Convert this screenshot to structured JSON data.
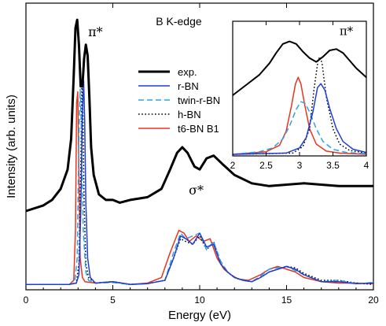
{
  "chart_data": [
    {
      "type": "line",
      "panel": "main",
      "xlabel": "Energy (eV)",
      "ylabel": "Intensity (arb. units)",
      "xlim": [
        0,
        20
      ],
      "xticks": [
        0,
        5,
        10,
        15,
        20
      ],
      "ylim": [
        0,
        1
      ],
      "y_tick_labels": false,
      "grid": false,
      "legend_position": "center",
      "annotations": [
        {
          "text": "B K-edge",
          "x": 8.8,
          "y": 0.94
        },
        {
          "text": "π*",
          "x": 4.0,
          "y": 0.9
        },
        {
          "text": "σ*",
          "x": 9.8,
          "y": 0.33
        }
      ],
      "series": [
        {
          "name": "exp.",
          "color": "#000000",
          "dash": "solid",
          "width": 3,
          "x": [
            0,
            1,
            1.5,
            2,
            2.4,
            2.6,
            2.75,
            2.85,
            2.95,
            3.05,
            3.15,
            3.25,
            3.35,
            3.45,
            3.55,
            3.65,
            3.75,
            3.9,
            4.2,
            4.6,
            5.0,
            5.4,
            6,
            7,
            7.8,
            8.3,
            8.7,
            9.0,
            9.3,
            9.7,
            10.0,
            10.4,
            10.8,
            11.3,
            12,
            13,
            14,
            15,
            16,
            17,
            18,
            19,
            20
          ],
          "y": [
            0.27,
            0.29,
            0.31,
            0.35,
            0.42,
            0.53,
            0.76,
            0.93,
            0.96,
            0.87,
            0.72,
            0.72,
            0.82,
            0.87,
            0.83,
            0.68,
            0.5,
            0.4,
            0.33,
            0.31,
            0.31,
            0.3,
            0.31,
            0.32,
            0.35,
            0.42,
            0.48,
            0.5,
            0.48,
            0.43,
            0.42,
            0.46,
            0.47,
            0.44,
            0.4,
            0.37,
            0.36,
            0.365,
            0.37,
            0.365,
            0.36,
            0.36,
            0.36
          ]
        },
        {
          "name": "r-BN",
          "color": "#1f3fd0",
          "dash": "solid",
          "width": 1.5,
          "x": [
            0,
            2.5,
            2.9,
            3.05,
            3.15,
            3.25,
            3.32,
            3.38,
            3.45,
            3.55,
            3.7,
            4,
            5,
            6,
            7,
            8,
            8.5,
            8.9,
            9.2,
            9.6,
            10.0,
            10.4,
            10.8,
            11.2,
            11.6,
            12,
            12.5,
            13,
            13.5,
            14,
            14.5,
            15,
            15.5,
            16,
            17,
            18,
            19,
            20
          ],
          "y": [
            0.005,
            0.005,
            0.01,
            0.04,
            0.25,
            0.62,
            0.74,
            0.6,
            0.3,
            0.1,
            0.03,
            0.01,
            0.015,
            0.005,
            0.008,
            0.02,
            0.1,
            0.18,
            0.17,
            0.15,
            0.19,
            0.14,
            0.15,
            0.08,
            0.05,
            0.03,
            0.02,
            0.015,
            0.03,
            0.05,
            0.06,
            0.07,
            0.06,
            0.04,
            0.015,
            0.015,
            0.008,
            0.01
          ]
        },
        {
          "name": "twin-r-BN",
          "color": "#2aa3e8",
          "dash": "dash",
          "width": 1.5,
          "x": [
            0,
            2.5,
            2.8,
            2.95,
            3.05,
            3.12,
            3.2,
            3.3,
            3.45,
            3.6,
            4,
            5,
            6,
            7,
            8,
            8.5,
            8.9,
            9.2,
            9.6,
            10.0,
            10.4,
            10.8,
            11.2,
            11.6,
            12,
            12.5,
            13,
            13.5,
            14,
            14.5,
            15,
            15.5,
            16,
            17,
            18,
            19,
            20
          ],
          "y": [
            0.005,
            0.005,
            0.01,
            0.1,
            0.55,
            0.71,
            0.55,
            0.2,
            0.05,
            0.02,
            0.01,
            0.012,
            0.005,
            0.008,
            0.02,
            0.12,
            0.19,
            0.17,
            0.18,
            0.19,
            0.13,
            0.16,
            0.09,
            0.05,
            0.03,
            0.02,
            0.015,
            0.035,
            0.06,
            0.065,
            0.07,
            0.055,
            0.04,
            0.015,
            0.02,
            0.008,
            0.012
          ]
        },
        {
          "name": "h-BN",
          "color": "#000000",
          "dash": "dot",
          "width": 1.5,
          "x": [
            0,
            2.5,
            2.9,
            3.05,
            3.15,
            3.22,
            3.28,
            3.35,
            3.45,
            3.6,
            4,
            5,
            6,
            7,
            8,
            8.5,
            8.9,
            9.2,
            9.6,
            10.0,
            10.4,
            10.8,
            11.2,
            11.6,
            12,
            12.5,
            13,
            13.5,
            14,
            14.5,
            15,
            15.5,
            16,
            17,
            18,
            19,
            20
          ],
          "y": [
            0.005,
            0.005,
            0.01,
            0.08,
            0.4,
            0.74,
            0.62,
            0.3,
            0.08,
            0.03,
            0.01,
            0.015,
            0.005,
            0.008,
            0.02,
            0.1,
            0.17,
            0.16,
            0.15,
            0.18,
            0.13,
            0.16,
            0.08,
            0.05,
            0.03,
            0.02,
            0.015,
            0.03,
            0.05,
            0.06,
            0.07,
            0.065,
            0.045,
            0.02,
            0.02,
            0.01,
            0.005
          ]
        },
        {
          "name": "t6-BN B1",
          "color": "#e8341c",
          "dash": "solid",
          "width": 1.5,
          "x": [
            0,
            2.5,
            2.75,
            2.85,
            2.92,
            2.98,
            3.05,
            3.12,
            3.25,
            3.4,
            4,
            5,
            6,
            7,
            7.8,
            8.3,
            8.8,
            9.1,
            9.4,
            9.8,
            10.2,
            10.6,
            11.0,
            11.4,
            11.8,
            12.2,
            12.8,
            13.5,
            14,
            14.5,
            15,
            15.5,
            16,
            17,
            18,
            19,
            20
          ],
          "y": [
            0.005,
            0.005,
            0.02,
            0.2,
            0.66,
            0.7,
            0.4,
            0.1,
            0.03,
            0.015,
            0.01,
            0.015,
            0.005,
            0.01,
            0.03,
            0.12,
            0.2,
            0.19,
            0.16,
            0.18,
            0.16,
            0.17,
            0.1,
            0.06,
            0.04,
            0.025,
            0.02,
            0.04,
            0.06,
            0.07,
            0.06,
            0.05,
            0.03,
            0.015,
            0.01,
            0.01,
            0.008
          ]
        }
      ]
    },
    {
      "type": "line",
      "panel": "inset",
      "xlim": [
        2,
        4
      ],
      "xticks": [
        "2",
        "2.5",
        "3",
        "3.5",
        "4"
      ],
      "ylim": [
        0,
        1
      ],
      "annotations": [
        {
          "text": "π*",
          "x": 3.7,
          "y": 0.93
        }
      ],
      "series": [
        {
          "name": "exp.",
          "color": "#000000",
          "dash": "solid",
          "width": 2,
          "x": [
            2.0,
            2.2,
            2.4,
            2.55,
            2.65,
            2.75,
            2.85,
            2.95,
            3.05,
            3.15,
            3.25,
            3.35,
            3.45,
            3.55,
            3.65,
            3.75,
            3.85,
            4.0
          ],
          "y": [
            0.46,
            0.54,
            0.62,
            0.71,
            0.79,
            0.86,
            0.88,
            0.86,
            0.8,
            0.75,
            0.72,
            0.76,
            0.81,
            0.82,
            0.79,
            0.73,
            0.67,
            0.6
          ]
        },
        {
          "name": "r-BN",
          "color": "#1f3fd0",
          "dash": "solid",
          "width": 1.5,
          "x": [
            2.0,
            2.8,
            3.0,
            3.1,
            3.2,
            3.27,
            3.32,
            3.38,
            3.45,
            3.55,
            3.65,
            3.8,
            4.0
          ],
          "y": [
            0.0,
            0.01,
            0.05,
            0.13,
            0.33,
            0.52,
            0.55,
            0.5,
            0.36,
            0.2,
            0.1,
            0.04,
            0.015
          ]
        },
        {
          "name": "twin-r-BN",
          "color": "#2aa3e8",
          "dash": "dash",
          "width": 1.5,
          "x": [
            2.0,
            2.4,
            2.6,
            2.75,
            2.85,
            2.95,
            3.02,
            3.08,
            3.15,
            3.25,
            3.35,
            3.5,
            3.7,
            4.0
          ],
          "y": [
            0.0,
            0.02,
            0.05,
            0.12,
            0.22,
            0.35,
            0.41,
            0.4,
            0.33,
            0.2,
            0.1,
            0.04,
            0.015,
            0.005
          ]
        },
        {
          "name": "h-BN",
          "color": "#000000",
          "dash": "dot",
          "width": 1.5,
          "x": [
            2.0,
            2.9,
            3.05,
            3.15,
            3.22,
            3.28,
            3.31,
            3.34,
            3.4,
            3.5,
            3.6,
            3.75,
            4.0
          ],
          "y": [
            0.0,
            0.01,
            0.06,
            0.2,
            0.52,
            0.74,
            0.76,
            0.7,
            0.45,
            0.2,
            0.08,
            0.03,
            0.01
          ]
        },
        {
          "name": "t6-BN B1",
          "color": "#e8341c",
          "dash": "solid",
          "width": 1.5,
          "x": [
            2.0,
            2.5,
            2.7,
            2.8,
            2.88,
            2.94,
            2.98,
            3.02,
            3.08,
            3.15,
            3.25,
            3.4,
            3.6,
            4.0
          ],
          "y": [
            0.0,
            0.02,
            0.07,
            0.18,
            0.38,
            0.55,
            0.6,
            0.55,
            0.38,
            0.2,
            0.08,
            0.025,
            0.01,
            0.0
          ]
        }
      ]
    }
  ]
}
